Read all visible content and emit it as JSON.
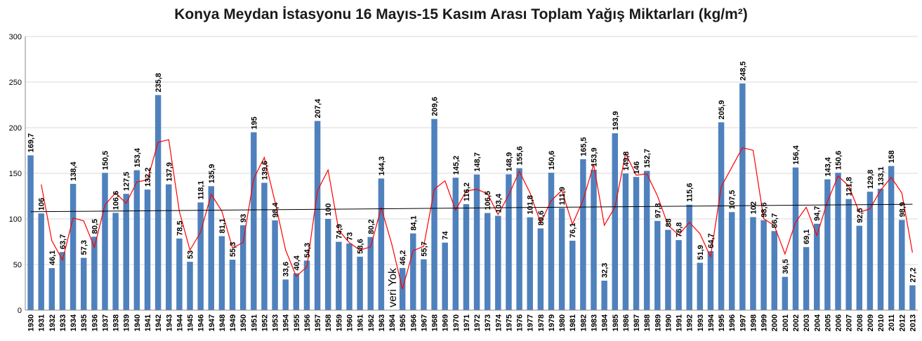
{
  "chart_data": {
    "type": "bar",
    "title": "Konya Meydan İstasyonu 16 Mayıs-15 Kasım Arası Toplam Yağış Miktarları (kg/m²)",
    "xlabel": "",
    "ylabel": "",
    "ylim": [
      0,
      300
    ],
    "yticks": [
      0,
      50,
      100,
      150,
      200,
      250,
      300
    ],
    "grid": true,
    "legend": "none",
    "categories": [
      "1930",
      "1931",
      "1932",
      "1933",
      "1934",
      "1935",
      "1936",
      "1937",
      "1938",
      "1939",
      "1940",
      "1941",
      "1942",
      "1943",
      "1944",
      "1945",
      "1946",
      "1947",
      "1948",
      "1949",
      "1950",
      "1951",
      "1952",
      "1953",
      "1954",
      "1955",
      "1956",
      "1957",
      "1958",
      "1959",
      "1960",
      "1961",
      "1962",
      "1963",
      "1964",
      "1965",
      "1966",
      "1967",
      "1968",
      "1969",
      "1970",
      "1971",
      "1972",
      "1973",
      "1974",
      "1975",
      "1976",
      "1977",
      "1978",
      "1979",
      "1980",
      "1981",
      "1982",
      "1983",
      "1984",
      "1985",
      "1986",
      "1987",
      "1988",
      "1989",
      "1990",
      "1991",
      "1992",
      "1993",
      "1994",
      "1995",
      "1996",
      "1997",
      "1998",
      "1999",
      "2000",
      "2001",
      "2002",
      "2003",
      "2004",
      "2005",
      "2006",
      "2007",
      "2008",
      "2009",
      "2010",
      "2011",
      "2012",
      "2013"
    ],
    "values": [
      169.7,
      106,
      46.1,
      63.7,
      138.4,
      57.3,
      80.5,
      150.5,
      106.6,
      127.5,
      153.4,
      132.2,
      235.8,
      137.9,
      78.5,
      53,
      118.1,
      135.9,
      81.1,
      55.3,
      93,
      195,
      139.6,
      98.4,
      33.6,
      40.4,
      54.3,
      207.4,
      100,
      74.9,
      73,
      58.6,
      80.2,
      144.3,
      null,
      46.2,
      84.1,
      55.7,
      209.6,
      74,
      145.2,
      116.2,
      148.7,
      106.5,
      103.4,
      148.9,
      155.6,
      101.8,
      89.6,
      150.6,
      111.9,
      76.1,
      165.5,
      153.9,
      32.3,
      193.9,
      149.8,
      146,
      152.7,
      97.8,
      88,
      76.8,
      115.6,
      51.9,
      64.7,
      205.9,
      107.5,
      248.5,
      102,
      98.6,
      86.7,
      36.5,
      156.4,
      69.1,
      94.7,
      143.4,
      150.6,
      121.8,
      92.5,
      129.8,
      133.1,
      158,
      98.9,
      27.2
    ],
    "value_labels": [
      "169,7",
      "106",
      "46,1",
      "63,7",
      "138,4",
      "57,3",
      "80,5",
      "150,5",
      "106,6",
      "127,5",
      "153,4",
      "132,2",
      "235,8",
      "137,9",
      "78,5",
      "53",
      "118,1",
      "135,9",
      "81,1",
      "55,3",
      "93",
      "195",
      "139,6",
      "98,4",
      "33,6",
      "40,4",
      "54,3",
      "207,4",
      "100",
      "74,9",
      "73",
      "58,6",
      "80,2",
      "144,3",
      "",
      "46,2",
      "84,1",
      "55,7",
      "209,6",
      "74",
      "145,2",
      "116,2",
      "148,7",
      "106,5",
      "103,4",
      "148,9",
      "155,6",
      "101,8",
      "89,6",
      "150,6",
      "111,9",
      "76,1",
      "165,5",
      "153,9",
      "32,3",
      "193,9",
      "149,8",
      "146",
      "152,7",
      "97,8",
      "88",
      "76,8",
      "115,6",
      "51,9",
      "64,7",
      "205,9",
      "107,5",
      "248,5",
      "102",
      "98,6",
      "86,7",
      "36,5",
      "156,4",
      "69,1",
      "94,7",
      "143,4",
      "150,6",
      "121,8",
      "92,5",
      "129,8",
      "133,1",
      "158",
      "98,9",
      "27,2"
    ],
    "missing_label": "veri Yok",
    "missing_year": "1964",
    "overlays": {
      "moving_average": "2-period moving average (red line)",
      "trend": "linear trend (black line)"
    },
    "colors": {
      "bar": "#4f81bd",
      "moving_average": "#ff0000",
      "trend": "#000000",
      "grid": "#d9d9d9"
    }
  }
}
